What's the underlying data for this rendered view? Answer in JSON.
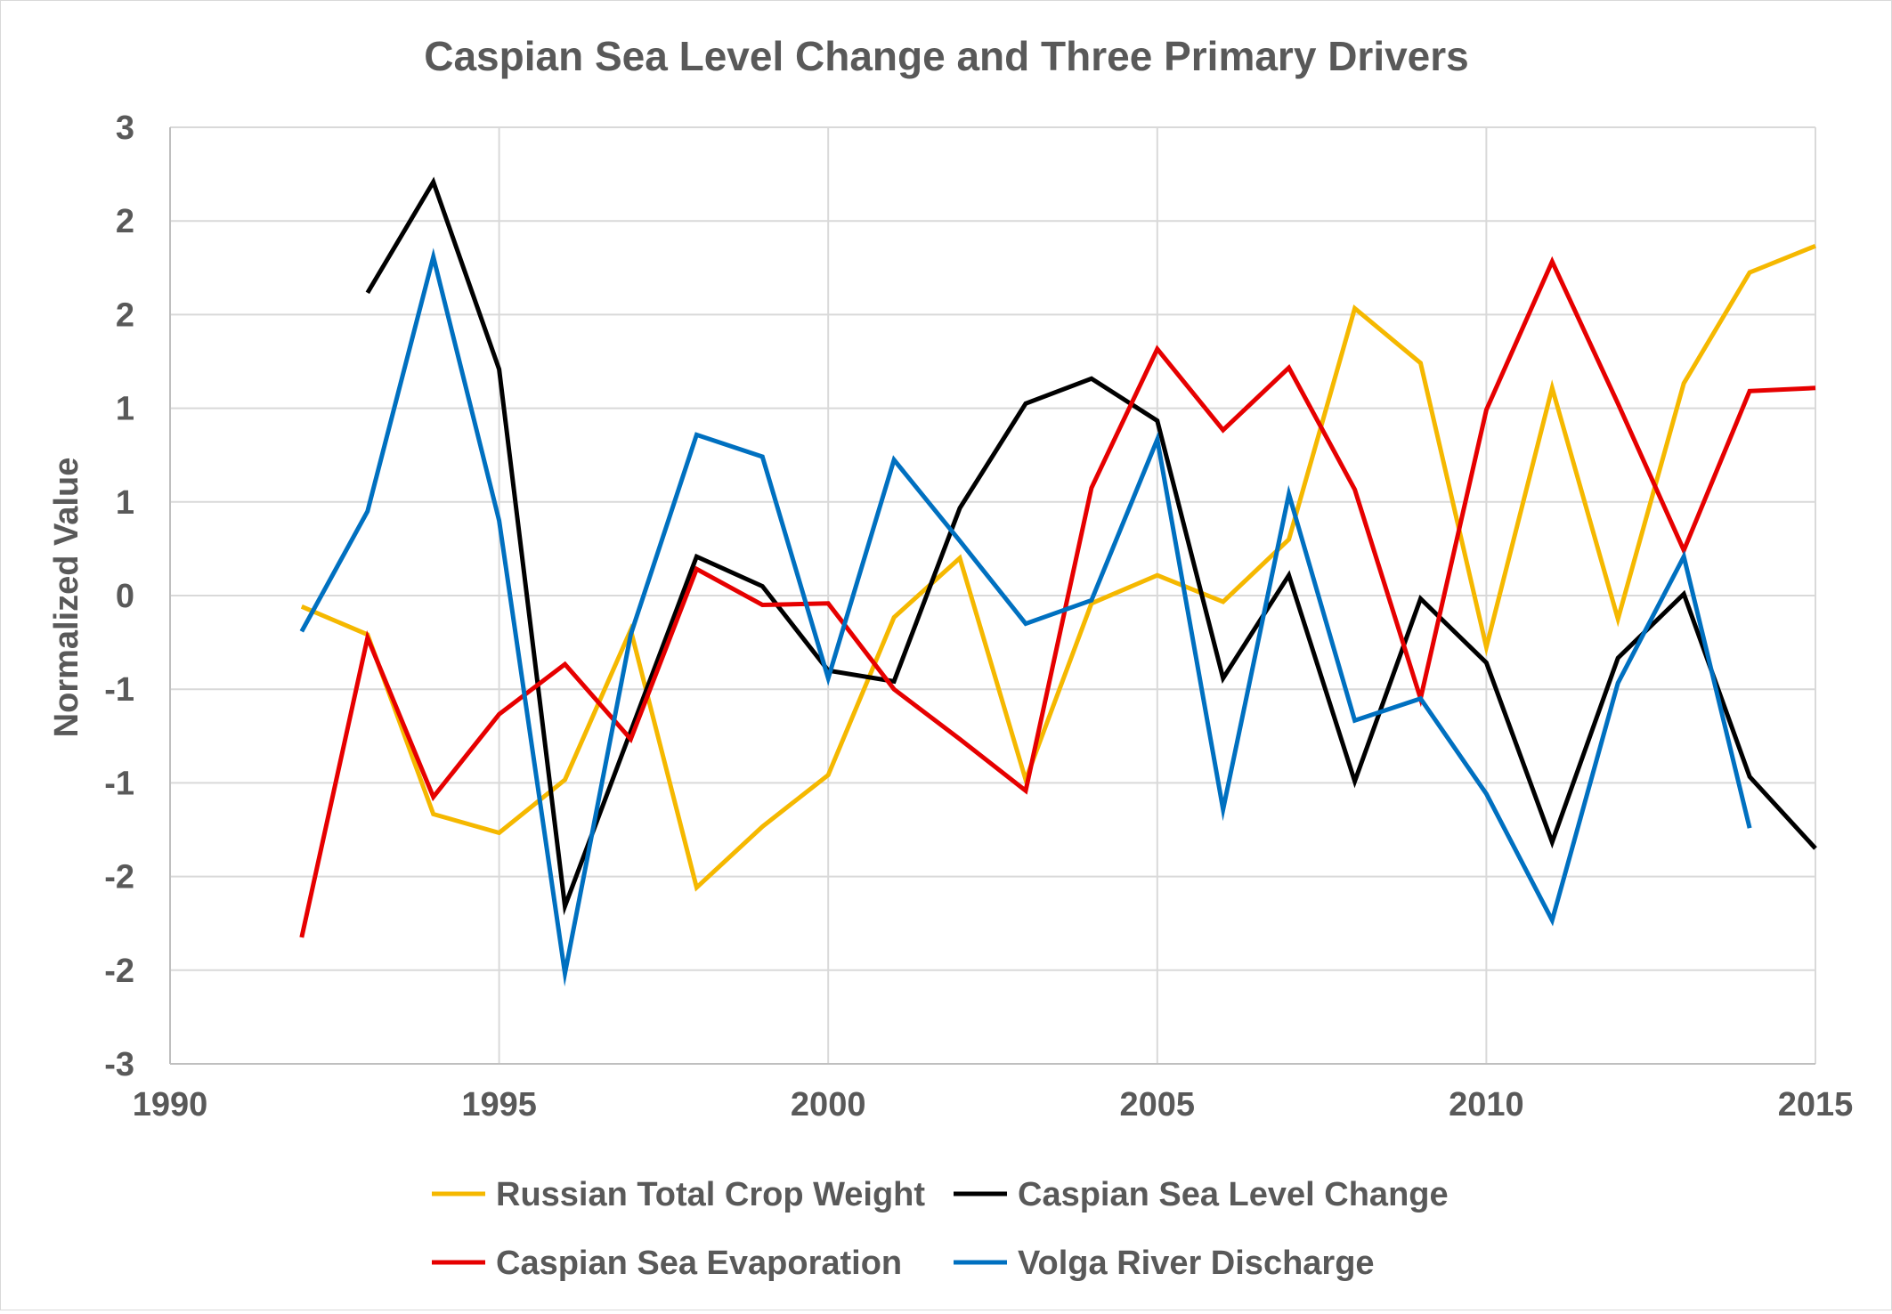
{
  "chart_data": {
    "type": "line",
    "title": "Caspian Sea Level Change and Three Primary Drivers",
    "xlabel": "",
    "ylabel": "Normalized Value",
    "xlim": [
      1990,
      2015
    ],
    "ylim": [
      -3,
      3
    ],
    "grid": true,
    "legend_position": "bottom",
    "x_ticks": [
      "1990",
      "1995",
      "2000",
      "2005",
      "2010",
      "2015"
    ],
    "x_tick_values": [
      1990,
      1995,
      2000,
      2005,
      2010,
      2015
    ],
    "y_ticks": [
      "3",
      "2",
      "2",
      "1",
      "1",
      "0",
      "-1",
      "-1",
      "-2",
      "-2",
      "-3"
    ],
    "y_tick_values": [
      3,
      2.4,
      1.8,
      1.2,
      0.6,
      0,
      -0.6,
      -1.2,
      -1.8,
      -2.4,
      -3
    ],
    "series": [
      {
        "name": "Russian Total Crop Weight",
        "color": "#F5B800",
        "x": [
          1992,
          1993,
          1994,
          1995,
          1996,
          1997,
          1998,
          1999,
          2000,
          2001,
          2002,
          2003,
          2004,
          2005,
          2006,
          2007,
          2008,
          2009,
          2010,
          2011,
          2012,
          2013,
          2014,
          2015
        ],
        "values": [
          -0.07,
          -0.25,
          -1.4,
          -1.52,
          -1.18,
          -0.22,
          -1.87,
          -1.48,
          -1.15,
          -0.14,
          0.24,
          -1.18,
          -0.05,
          0.13,
          -0.04,
          0.36,
          1.84,
          1.49,
          -0.33,
          1.33,
          -0.15,
          1.36,
          2.07,
          2.24
        ]
      },
      {
        "name": "Caspian Sea Level Change",
        "color": "#000000",
        "x": [
          1993,
          1994,
          1995,
          1996,
          1997,
          1998,
          1999,
          2000,
          2001,
          2002,
          2003,
          2004,
          2005,
          2006,
          2007,
          2008,
          2009,
          2010,
          2011,
          2012,
          2013,
          2014,
          2015
        ],
        "values": [
          1.94,
          2.65,
          1.45,
          -1.99,
          -0.87,
          0.25,
          0.06,
          -0.48,
          -0.55,
          0.56,
          1.23,
          1.39,
          1.12,
          -0.53,
          0.13,
          -1.19,
          -0.02,
          -0.43,
          -1.58,
          -0.4,
          0.01,
          -1.16,
          -1.62
        ]
      },
      {
        "name": "Caspian Sea Evaporation",
        "color": "#E60000",
        "x": [
          1992,
          1993,
          1994,
          1995,
          1996,
          1997,
          1998,
          1999,
          2000,
          2001,
          2002,
          2003,
          2004,
          2005,
          2006,
          2007,
          2008,
          2009,
          2010,
          2011,
          2012,
          2013,
          2014,
          2015
        ],
        "values": [
          -2.19,
          -0.27,
          -1.29,
          -0.76,
          -0.44,
          -0.92,
          0.17,
          -0.06,
          -0.05,
          -0.6,
          -0.92,
          -1.25,
          0.69,
          1.58,
          1.06,
          1.46,
          0.68,
          -0.66,
          1.19,
          2.14,
          1.23,
          0.29,
          1.31,
          1.33
        ]
      },
      {
        "name": "Volga River Discharge",
        "color": "#0070C0",
        "x": [
          1992,
          1993,
          1994,
          1995,
          1996,
          1997,
          1998,
          1999,
          2000,
          2001,
          2002,
          2003,
          2004,
          2005,
          2006,
          2007,
          2008,
          2009,
          2010,
          2011,
          2012,
          2013,
          2014
        ],
        "values": [
          -0.23,
          0.54,
          2.17,
          0.48,
          -2.42,
          -0.25,
          1.03,
          0.89,
          -0.53,
          0.87,
          0.35,
          -0.18,
          -0.03,
          1.0,
          -1.37,
          0.65,
          -0.8,
          -0.66,
          -1.27,
          -2.08,
          -0.56,
          0.25,
          -1.49
        ]
      }
    ]
  }
}
